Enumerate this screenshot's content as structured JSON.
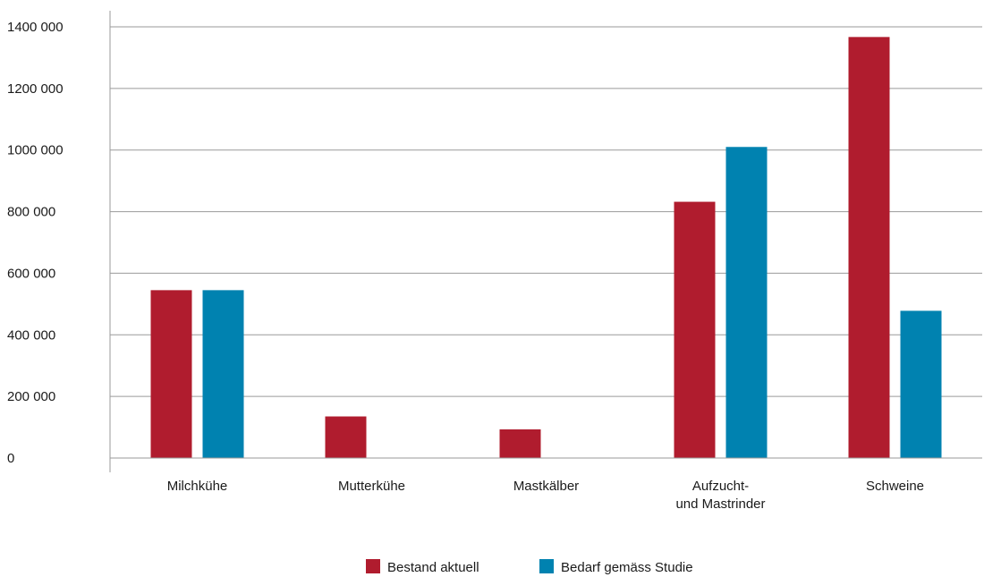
{
  "chart_data": {
    "type": "bar",
    "categories": [
      [
        "Milchkühe"
      ],
      [
        "Mutterkühe"
      ],
      [
        "Mastkälber"
      ],
      [
        "Aufzucht-",
        "und Mastrinder"
      ],
      [
        "Schweine"
      ]
    ],
    "series": [
      {
        "name": "Bestand aktuell",
        "color": "#b01c2e",
        "values": [
          545000,
          135000,
          93000,
          832000,
          1367000
        ]
      },
      {
        "name": "Bedarf gemäss Studie",
        "color": "#0082b0",
        "values": [
          545000,
          null,
          null,
          1010000,
          478000
        ]
      }
    ],
    "ylim": [
      0,
      1400000
    ],
    "yticks": [
      0,
      200000,
      400000,
      600000,
      800000,
      1000000,
      1200000,
      1400000
    ],
    "ytick_labels": [
      "0",
      "200 000",
      "400 000",
      "600 000",
      "800 000",
      "1000 000",
      "1200 000",
      "1400 000"
    ],
    "grid": true,
    "legend": "bottom-center"
  }
}
